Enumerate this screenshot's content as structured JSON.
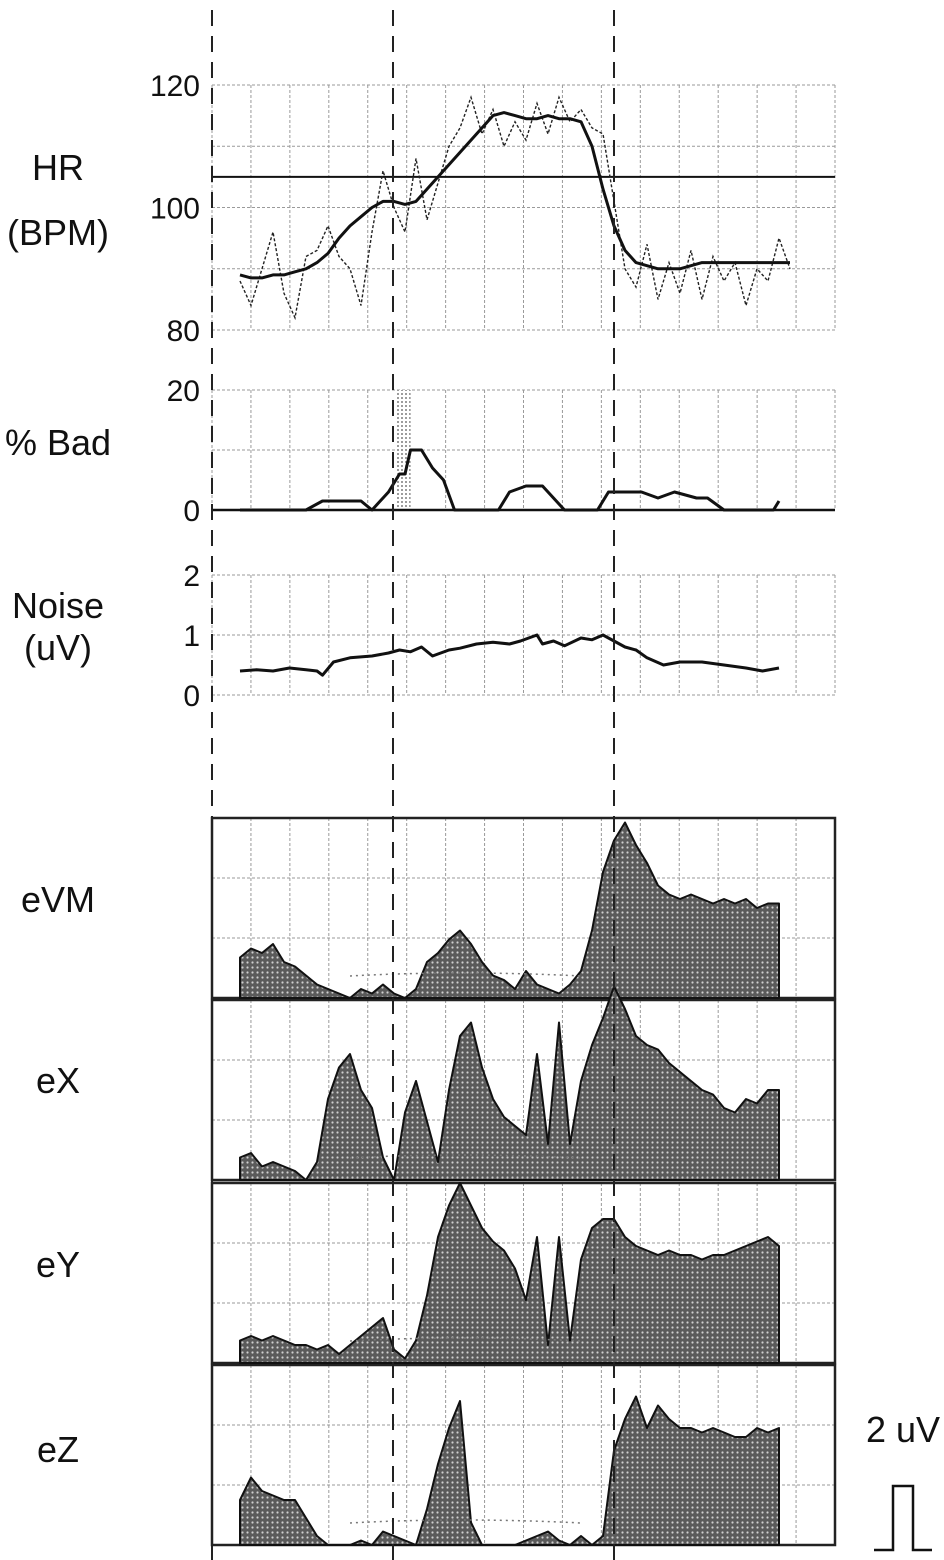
{
  "chart_data": [
    {
      "type": "line",
      "panel": "hr",
      "ylabel": [
        "HR",
        "(BPM)"
      ],
      "ylim": [
        80,
        120
      ],
      "ytick_labels": [
        "120",
        "100",
        "80"
      ],
      "yticks": [
        120,
        100,
        80
      ],
      "reference_line": 105,
      "x": [
        0,
        2,
        4,
        6,
        8,
        10,
        12,
        14,
        16,
        18,
        20,
        22,
        24,
        26,
        28,
        30,
        32,
        34,
        36,
        38,
        40,
        42,
        44,
        46,
        48,
        50,
        52,
        54,
        56,
        58,
        60,
        62,
        64,
        66,
        68,
        70,
        72,
        74,
        76,
        78,
        80,
        82,
        84,
        86,
        88,
        90,
        92,
        94,
        96,
        98,
        100
      ],
      "series": [
        {
          "style": "smoothed",
          "values": [
            89,
            88.5,
            88.5,
            89,
            89,
            89.5,
            90,
            91,
            92.5,
            95,
            97,
            98.5,
            100,
            101,
            101,
            100.5,
            101,
            103,
            105,
            107,
            109,
            111,
            113,
            115,
            115.5,
            115,
            114.5,
            114.5,
            115,
            114.5,
            114.5,
            114,
            110,
            103,
            97,
            93,
            91,
            90.5,
            90,
            90,
            90,
            90.5,
            91,
            91,
            91,
            91,
            91,
            91,
            91,
            91,
            91
          ]
        },
        {
          "style": "raw",
          "values": [
            88,
            84,
            90,
            96,
            86,
            82,
            92,
            93,
            97,
            92,
            90,
            84,
            96,
            106,
            100,
            96,
            108,
            98,
            104,
            110,
            113,
            118,
            112,
            116,
            110,
            114,
            111,
            117,
            112,
            118,
            114,
            116,
            113,
            112,
            101,
            90,
            87,
            94,
            85,
            91,
            86,
            93,
            85,
            92,
            88,
            91,
            84,
            90,
            88,
            95,
            90
          ]
        }
      ]
    },
    {
      "type": "line",
      "panel": "bad",
      "ylabel": [
        "% Bad"
      ],
      "ylim": [
        0,
        20
      ],
      "ytick_labels": [
        "20",
        "0"
      ],
      "yticks": [
        20,
        0
      ],
      "x": [
        0,
        5,
        10,
        12,
        15,
        20,
        22,
        24,
        27,
        29,
        30,
        31,
        33,
        35,
        37,
        39,
        41,
        43,
        47,
        49,
        52,
        55,
        57,
        59,
        61,
        65,
        67,
        70,
        73,
        76,
        79,
        83,
        85,
        88,
        91,
        94,
        97,
        98
      ],
      "values": [
        0,
        0,
        0,
        0,
        1.5,
        1.5,
        1.5,
        0,
        3,
        6,
        6,
        10,
        10,
        7,
        5,
        0,
        0,
        0,
        0,
        3,
        4,
        4,
        2,
        0,
        0,
        0,
        3,
        3,
        3,
        2,
        3,
        2,
        2,
        0,
        0,
        0,
        0,
        1.5
      ],
      "shaded_x_range": [
        28.5,
        31
      ]
    },
    {
      "type": "line",
      "panel": "noise",
      "ylabel": [
        "Noise",
        "(uV)"
      ],
      "ylim": [
        0,
        2
      ],
      "ytick_labels": [
        "2",
        "1",
        "0"
      ],
      "yticks": [
        2,
        1,
        0
      ],
      "x": [
        0,
        3,
        6,
        9,
        12,
        14,
        15,
        17,
        20,
        24,
        27,
        29,
        31,
        33,
        35,
        38,
        40,
        43,
        46,
        49,
        51,
        54,
        55,
        57,
        59,
        62,
        64,
        66,
        68,
        70,
        72,
        74,
        77,
        80,
        84,
        88,
        92,
        95,
        98
      ],
      "values": [
        0.4,
        0.42,
        0.4,
        0.45,
        0.42,
        0.4,
        0.33,
        0.55,
        0.62,
        0.65,
        0.7,
        0.75,
        0.72,
        0.8,
        0.65,
        0.75,
        0.78,
        0.85,
        0.88,
        0.85,
        0.9,
        1.0,
        0.85,
        0.9,
        0.82,
        0.95,
        0.92,
        1.0,
        0.9,
        0.8,
        0.75,
        0.62,
        0.5,
        0.55,
        0.55,
        0.5,
        0.45,
        0.4,
        0.45
      ]
    },
    {
      "type": "area",
      "panel": "evm",
      "ylabel": [
        "eVM"
      ],
      "ylim": [
        0,
        4
      ],
      "x": [
        0,
        2,
        4,
        6,
        8,
        10,
        12,
        14,
        16,
        18,
        20,
        22,
        24,
        26,
        28,
        30,
        32,
        34,
        36,
        38,
        40,
        42,
        44,
        46,
        48,
        50,
        52,
        54,
        56,
        58,
        60,
        62,
        64,
        66,
        68,
        70,
        72,
        74,
        76,
        78,
        80,
        82,
        84,
        86,
        88,
        90,
        92,
        94,
        96,
        98
      ],
      "values": [
        0.9,
        1.1,
        1.0,
        1.2,
        0.8,
        0.7,
        0.5,
        0.3,
        0.2,
        0.1,
        0,
        0.2,
        0.1,
        0.3,
        0.1,
        0,
        0.2,
        0.8,
        1.0,
        1.3,
        1.5,
        1.2,
        0.8,
        0.5,
        0.4,
        0.2,
        0.6,
        0.3,
        0.2,
        0.1,
        0.3,
        0.6,
        1.5,
        2.8,
        3.5,
        3.9,
        3.4,
        3.0,
        2.5,
        2.3,
        2.2,
        2.3,
        2.2,
        2.1,
        2.2,
        2.1,
        2.2,
        2.0,
        2.1,
        2.1
      ]
    },
    {
      "type": "area",
      "panel": "ex",
      "ylabel": [
        "eX"
      ],
      "ylim": [
        0,
        4
      ],
      "x": [
        0,
        2,
        4,
        6,
        8,
        10,
        12,
        14,
        16,
        18,
        20,
        22,
        24,
        26,
        28,
        30,
        32,
        34,
        36,
        38,
        40,
        42,
        44,
        46,
        48,
        50,
        52,
        54,
        56,
        58,
        60,
        62,
        64,
        66,
        68,
        70,
        72,
        74,
        76,
        78,
        80,
        82,
        84,
        86,
        88,
        90,
        92,
        94,
        96,
        98
      ],
      "values": [
        0.5,
        0.6,
        0.3,
        0.4,
        0.3,
        0.2,
        0,
        0.4,
        1.8,
        2.5,
        2.8,
        2.0,
        1.6,
        0.5,
        0,
        1.5,
        2.2,
        1.3,
        0.4,
        2.0,
        3.2,
        3.5,
        2.5,
        1.8,
        1.4,
        1.2,
        1.0,
        2.8,
        0.8,
        3.5,
        0.8,
        2.2,
        3.0,
        3.6,
        4.3,
        3.8,
        3.2,
        3.0,
        2.9,
        2.6,
        2.4,
        2.2,
        2.0,
        1.9,
        1.6,
        1.5,
        1.8,
        1.7,
        2.0,
        2.0
      ]
    },
    {
      "type": "area",
      "panel": "ey",
      "ylabel": [
        "eY"
      ],
      "ylim": [
        0,
        4
      ],
      "x": [
        0,
        2,
        4,
        6,
        8,
        10,
        12,
        14,
        16,
        18,
        20,
        22,
        24,
        26,
        28,
        30,
        32,
        34,
        36,
        38,
        40,
        42,
        44,
        46,
        48,
        50,
        52,
        54,
        56,
        58,
        60,
        62,
        64,
        66,
        68,
        70,
        72,
        74,
        76,
        78,
        80,
        82,
        84,
        86,
        88,
        90,
        92,
        94,
        96,
        98
      ],
      "values": [
        0.5,
        0.6,
        0.5,
        0.6,
        0.5,
        0.4,
        0.4,
        0.3,
        0.4,
        0.2,
        0.4,
        0.6,
        0.8,
        1.0,
        0.3,
        0.1,
        0.5,
        1.5,
        2.8,
        3.5,
        4.0,
        3.5,
        3.0,
        2.7,
        2.5,
        2.1,
        1.4,
        2.8,
        0.4,
        2.8,
        0.5,
        2.3,
        3.0,
        3.2,
        3.2,
        2.8,
        2.6,
        2.5,
        2.4,
        2.5,
        2.4,
        2.4,
        2.3,
        2.4,
        2.4,
        2.5,
        2.6,
        2.7,
        2.8,
        2.6
      ]
    },
    {
      "type": "area",
      "panel": "ez",
      "ylabel": [
        "eZ"
      ],
      "ylim": [
        0,
        4
      ],
      "x": [
        0,
        2,
        4,
        6,
        8,
        10,
        12,
        14,
        16,
        18,
        20,
        22,
        24,
        26,
        28,
        30,
        32,
        34,
        36,
        38,
        40,
        42,
        44,
        46,
        48,
        50,
        52,
        54,
        56,
        58,
        60,
        62,
        64,
        66,
        68,
        70,
        72,
        74,
        76,
        78,
        80,
        82,
        84,
        86,
        88,
        90,
        92,
        94,
        96,
        98
      ],
      "values": [
        1.0,
        1.5,
        1.2,
        1.1,
        1.0,
        1.0,
        0.6,
        0.2,
        0,
        0,
        0,
        0.1,
        0,
        0.3,
        0.2,
        0.1,
        0,
        0.8,
        1.8,
        2.6,
        3.2,
        0.5,
        0,
        0,
        0,
        0,
        0.1,
        0.2,
        0.3,
        0.1,
        0,
        0.2,
        0,
        0.2,
        2.1,
        2.8,
        3.3,
        2.6,
        3.1,
        2.8,
        2.6,
        2.6,
        2.5,
        2.6,
        2.5,
        2.4,
        2.4,
        2.6,
        2.5,
        2.6
      ]
    }
  ],
  "scale_bar": {
    "label": "2 uV"
  },
  "colors": {
    "ink": "#111111",
    "grid": "#9a9a9a",
    "fill": "#555555"
  }
}
